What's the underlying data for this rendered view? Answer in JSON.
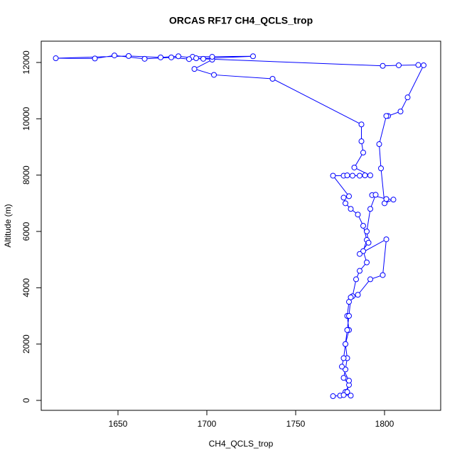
{
  "chart_data": {
    "type": "line",
    "title": "ORCAS RF17 CH4_QCLS_trop",
    "xlabel": "CH4_QCLS_trop",
    "ylabel": "Altitude (m)",
    "color": "#0000ff",
    "markers": true,
    "x": [
      1771,
      1775,
      1778,
      1780,
      1777,
      1778,
      1779,
      1778,
      1780,
      1779,
      1780,
      1782,
      1784,
      1786,
      1790,
      1788,
      1790,
      1788,
      1785,
      1781,
      1778,
      1777,
      1780,
      1771,
      1777,
      1779,
      1782,
      1786,
      1789,
      1792,
      1783,
      1788,
      1787,
      1787,
      1737,
      1704,
      1693,
      1703,
      1703,
      1692,
      1726,
      1690,
      1680,
      1665,
      1648,
      1637,
      1615,
      1656,
      1674,
      1684,
      1694,
      1698,
      1799,
      1808,
      1819,
      1822,
      1813,
      1809,
      1802,
      1801,
      1797,
      1798,
      1800,
      1805,
      1801,
      1793,
      1795,
      1792,
      1790,
      1791,
      1786,
      1801,
      1799,
      1792,
      1785,
      1781,
      1780,
      1779,
      1778,
      1777,
      1776,
      1780,
      1779,
      1777,
      1781
    ],
    "y": [
      150,
      170,
      300,
      550,
      800,
      1100,
      1500,
      2000,
      2500,
      3000,
      3500,
      3700,
      4300,
      4600,
      4900,
      5300,
      5700,
      6200,
      6600,
      6800,
      7000,
      7200,
      7250,
      7980,
      7980,
      7990,
      7980,
      7980,
      7990,
      7990,
      8270,
      8800,
      9200,
      9800,
      11420,
      11560,
      11770,
      12100,
      12200,
      12200,
      12220,
      12120,
      12180,
      12130,
      12250,
      12140,
      12150,
      12230,
      12180,
      12220,
      12150,
      12130,
      11880,
      11900,
      11910,
      11900,
      10760,
      10260,
      10100,
      10100,
      9100,
      8240,
      7000,
      7130,
      7150,
      7290,
      7300,
      6800,
      6000,
      5600,
      5200,
      5720,
      4450,
      4300,
      3750,
      3660,
      3000,
      2500,
      2000,
      1500,
      1200,
      700,
      300,
      190,
      170
    ],
    "xlim": [
      1606.8,
      1831.6
    ],
    "ylim": [
      -353,
      12756
    ],
    "xticks": [
      1650,
      1700,
      1750,
      1800
    ],
    "yticks": [
      0,
      2000,
      4000,
      6000,
      8000,
      10000,
      12000
    ]
  }
}
